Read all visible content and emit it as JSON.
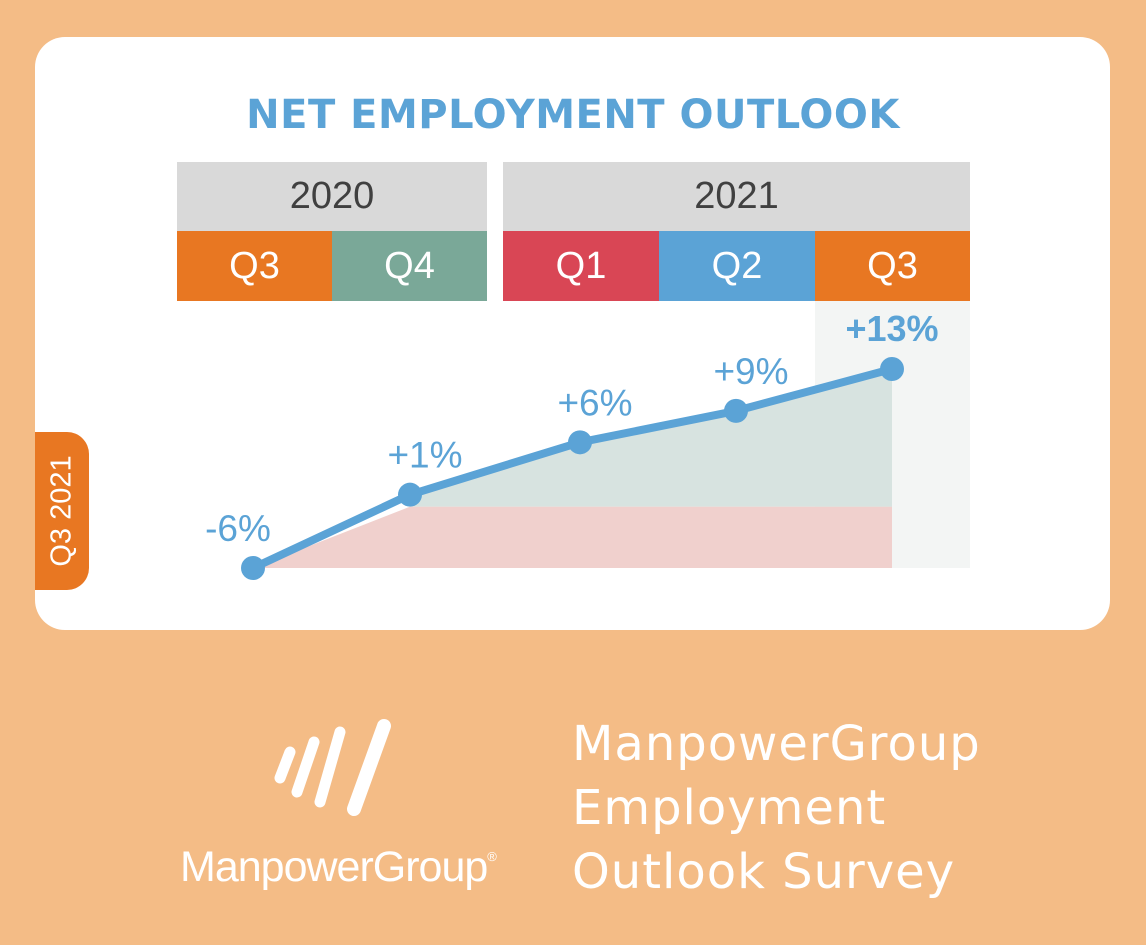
{
  "colors": {
    "background": "#f4bc86",
    "accent_blue": "#5ba3d6",
    "orange": "#e87722",
    "teal": "#7aa898",
    "red": "#d94655",
    "light_blue": "#5ba3d6"
  },
  "chart_data": {
    "type": "line",
    "title": "NET EMPLOYMENT OUTLOOK",
    "years": [
      {
        "label": "2020",
        "span": 2
      },
      {
        "label": "2021",
        "span": 3
      }
    ],
    "categories": [
      "Q3",
      "Q4",
      "Q1",
      "Q2",
      "Q3"
    ],
    "category_colors": [
      "#e87722",
      "#7aa898",
      "#d94655",
      "#5ba3d6",
      "#e87722"
    ],
    "values": [
      -6,
      1,
      6,
      9,
      13
    ],
    "data_labels": [
      "-6%",
      "+1%",
      "+6%",
      "+9%",
      "+13%"
    ],
    "highlight_index": 4,
    "ylim": [
      -6,
      13
    ],
    "grid": false,
    "legend": "none"
  },
  "side_tab": {
    "label": "Q3 2021"
  },
  "logo": {
    "icon": "manpowergroup-stripes-icon",
    "wordmark": "ManpowerGroup",
    "registered": "®"
  },
  "survey": {
    "lines": [
      "ManpowerGroup",
      "Employment",
      "Outlook Survey"
    ]
  }
}
